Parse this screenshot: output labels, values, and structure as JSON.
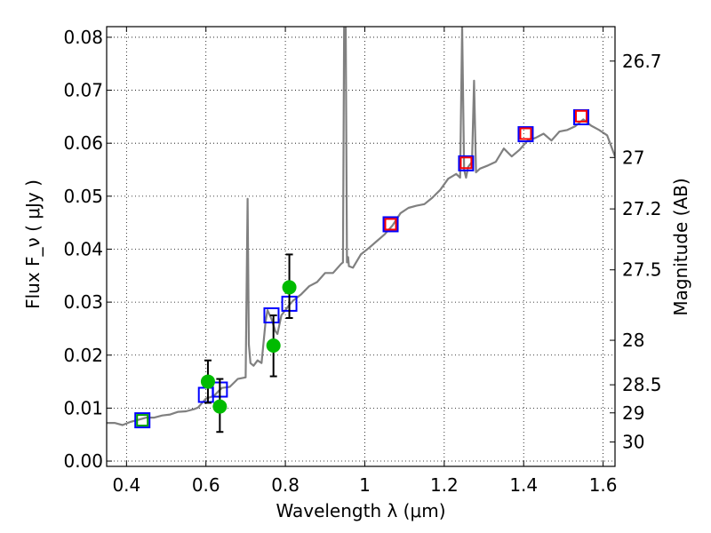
{
  "chart_data": {
    "type": "scatter",
    "xlabel": "Wavelength  λ (μm)",
    "ylabel": "Flux  F_ν  ( μJy )",
    "ylabel_right": "Magnitude (AB)",
    "xlim": [
      0.35,
      1.63
    ],
    "ylim": [
      -0.001,
      0.082
    ],
    "grid": true,
    "x_ticks": [
      0.4,
      0.6,
      0.8,
      1.0,
      1.2,
      1.4,
      1.6
    ],
    "x_tick_labels": [
      "0.4",
      "0.6",
      "0.8",
      "1",
      "1.2",
      "1.4",
      "1.6"
    ],
    "y_ticks": [
      0.0,
      0.01,
      0.02,
      0.03,
      0.04,
      0.05,
      0.06,
      0.07,
      0.08
    ],
    "y_tick_labels": [
      "0.00",
      "0.01",
      "0.02",
      "0.03",
      "0.04",
      "0.05",
      "0.06",
      "0.07",
      "0.08"
    ],
    "right_ticks": [
      {
        "label": "26.7",
        "flux": 0.0755
      },
      {
        "label": "27",
        "flux": 0.0573
      },
      {
        "label": "27.2",
        "flux": 0.0476
      },
      {
        "label": "27.5",
        "flux": 0.0361
      },
      {
        "label": "28",
        "flux": 0.0228
      },
      {
        "label": "28.5",
        "flux": 0.0144
      },
      {
        "label": "29",
        "flux": 0.0091
      },
      {
        "label": "30",
        "flux": 0.0036
      }
    ],
    "series": [
      {
        "style": "line",
        "color": "#808080",
        "x": [
          0.35,
          0.37,
          0.39,
          0.41,
          0.43,
          0.45,
          0.47,
          0.49,
          0.51,
          0.53,
          0.55,
          0.57,
          0.58,
          0.6,
          0.62,
          0.64,
          0.66,
          0.68,
          0.7,
          0.705,
          0.708,
          0.712,
          0.72,
          0.73,
          0.74,
          0.75,
          0.755,
          0.765,
          0.775,
          0.78,
          0.79,
          0.8,
          0.81,
          0.82,
          0.84,
          0.86,
          0.88,
          0.9,
          0.92,
          0.94,
          0.945,
          0.948,
          0.952,
          0.955,
          0.958,
          0.96,
          0.97,
          0.99,
          1.01,
          1.03,
          1.05,
          1.07,
          1.09,
          1.11,
          1.13,
          1.15,
          1.17,
          1.19,
          1.21,
          1.23,
          1.24,
          1.245,
          1.25,
          1.255,
          1.26,
          1.27,
          1.275,
          1.28,
          1.29,
          1.31,
          1.33,
          1.35,
          1.37,
          1.39,
          1.41,
          1.43,
          1.45,
          1.47,
          1.49,
          1.51,
          1.53,
          1.55,
          1.57,
          1.59,
          1.61,
          1.63
        ],
        "y": [
          0.0072,
          0.0072,
          0.0068,
          0.0074,
          0.0078,
          0.0082,
          0.0082,
          0.0086,
          0.0088,
          0.0093,
          0.0094,
          0.0098,
          0.0101,
          0.0118,
          0.0123,
          0.0138,
          0.014,
          0.0155,
          0.0158,
          0.0495,
          0.022,
          0.0185,
          0.018,
          0.019,
          0.0185,
          0.0263,
          0.0285,
          0.0268,
          0.0245,
          0.024,
          0.0275,
          0.0285,
          0.0295,
          0.0303,
          0.0315,
          0.033,
          0.0338,
          0.0355,
          0.0355,
          0.0372,
          0.0375,
          0.082,
          0.082,
          0.0375,
          0.0385,
          0.0368,
          0.0365,
          0.039,
          0.0402,
          0.0415,
          0.0428,
          0.0445,
          0.0468,
          0.0478,
          0.0482,
          0.0485,
          0.0497,
          0.0512,
          0.0533,
          0.0542,
          0.0535,
          0.082,
          0.055,
          0.0535,
          0.0555,
          0.0565,
          0.0718,
          0.0545,
          0.0552,
          0.0558,
          0.0565,
          0.059,
          0.0575,
          0.0588,
          0.0605,
          0.061,
          0.0618,
          0.0605,
          0.0622,
          0.0625,
          0.0632,
          0.0645,
          0.0633,
          0.0625,
          0.0615,
          0.0575
        ]
      },
      {
        "style": "open-square",
        "color": "#0000ff",
        "x": [
          0.44,
          0.6,
          0.635,
          0.765,
          0.81,
          1.065,
          1.255,
          1.405,
          1.545
        ],
        "y": [
          0.0077,
          0.0125,
          0.0135,
          0.0275,
          0.0297,
          0.0447,
          0.0562,
          0.0617,
          0.0649
        ]
      },
      {
        "style": "open-square",
        "color": "#ff0000",
        "x": [
          1.065,
          1.255,
          1.405,
          1.545
        ],
        "y": [
          0.0447,
          0.0563,
          0.0618,
          0.0651
        ]
      },
      {
        "style": "open-square",
        "color": "#00a000",
        "x": [
          0.44
        ],
        "y": [
          0.0077
        ]
      },
      {
        "style": "filled-circle",
        "color": "#00bb00",
        "x": [
          0.605,
          0.635,
          0.77,
          0.81
        ],
        "y": [
          0.015,
          0.0103,
          0.0218,
          0.0328
        ],
        "yerr_low": [
          0.011,
          0.0055,
          0.016,
          0.027
        ],
        "yerr_high": [
          0.019,
          0.0155,
          0.0275,
          0.039
        ]
      }
    ]
  }
}
